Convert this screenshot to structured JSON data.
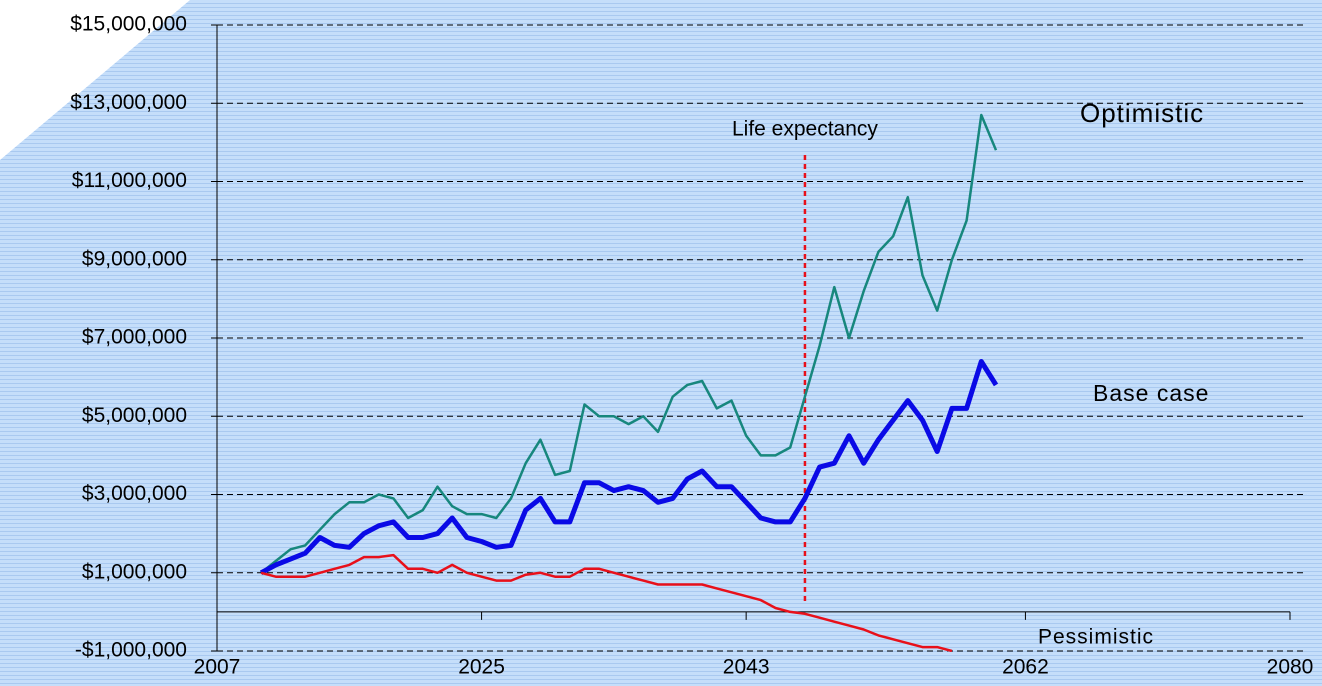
{
  "chart_data": {
    "type": "line",
    "x": [
      2010,
      2011,
      2012,
      2013,
      2014,
      2015,
      2016,
      2017,
      2018,
      2019,
      2020,
      2021,
      2022,
      2023,
      2024,
      2025,
      2026,
      2027,
      2028,
      2029,
      2030,
      2031,
      2032,
      2033,
      2034,
      2035,
      2036,
      2037,
      2038,
      2039,
      2040,
      2041,
      2042,
      2043,
      2044,
      2045,
      2046,
      2047,
      2048,
      2049,
      2050,
      2051,
      2052,
      2053,
      2054,
      2055,
      2056,
      2057,
      2058,
      2059,
      2060
    ],
    "series": [
      {
        "name": "Optimistic",
        "color": "#17877d",
        "width": 2.5,
        "values": [
          1000000,
          1300000,
          1600000,
          1700000,
          2100000,
          2500000,
          2800000,
          2800000,
          3000000,
          2900000,
          2400000,
          2600000,
          3200000,
          2700000,
          2500000,
          2500000,
          2400000,
          2900000,
          3800000,
          4400000,
          3500000,
          3600000,
          5300000,
          5000000,
          5000000,
          4800000,
          5000000,
          4600000,
          5500000,
          5800000,
          5900000,
          5200000,
          5400000,
          4500000,
          4000000,
          4000000,
          4200000,
          5500000,
          6800000,
          8300000,
          7000000,
          8200000,
          9200000,
          9600000,
          10600000,
          8600000,
          7700000,
          9000000,
          10000000,
          12700000,
          11800000
        ]
      },
      {
        "name": "Base case",
        "color": "#0a0ae6",
        "width": 5,
        "values": [
          1000000,
          1200000,
          1350000,
          1500000,
          1900000,
          1700000,
          1650000,
          2000000,
          2200000,
          2300000,
          1900000,
          1900000,
          2000000,
          2400000,
          1900000,
          1800000,
          1650000,
          1700000,
          2600000,
          2900000,
          2300000,
          2300000,
          3300000,
          3300000,
          3100000,
          3200000,
          3100000,
          2800000,
          2900000,
          3400000,
          3600000,
          3200000,
          3200000,
          2800000,
          2400000,
          2300000,
          2300000,
          2900000,
          3700000,
          3800000,
          4500000,
          3800000,
          4400000,
          4900000,
          5400000,
          4900000,
          4100000,
          5200000,
          5200000,
          6400000,
          5800000
        ]
      },
      {
        "name": "Pessimistic",
        "color": "#e8101a",
        "width": 2.5,
        "values": [
          1000000,
          900000,
          900000,
          900000,
          1000000,
          1100000,
          1200000,
          1400000,
          1400000,
          1450000,
          1100000,
          1100000,
          1000000,
          1200000,
          1000000,
          900000,
          800000,
          800000,
          950000,
          1000000,
          900000,
          900000,
          1100000,
          1100000,
          1000000,
          900000,
          800000,
          700000,
          700000,
          700000,
          700000,
          600000,
          500000,
          400000,
          300000,
          100000,
          0,
          -50000,
          -150000,
          -250000,
          -350000,
          -450000,
          -600000,
          -700000,
          -800000,
          -900000,
          -900000,
          -1000000,
          null,
          null,
          null
        ]
      }
    ],
    "annotation": {
      "text": "Life expectancy",
      "x": 2047,
      "color": "#e8101a"
    },
    "xlim": [
      2007,
      2080
    ],
    "xticks": [
      2007,
      2025,
      2043,
      2062,
      2080
    ],
    "ylim": [
      -1000000,
      15000000
    ],
    "yticks": [
      {
        "value": -1000000,
        "label": "-$1,000,000"
      },
      {
        "value": 1000000,
        "label": "$1,000,000"
      },
      {
        "value": 3000000,
        "label": "$3,000,000"
      },
      {
        "value": 5000000,
        "label": "$5,000,000"
      },
      {
        "value": 7000000,
        "label": "$7,000,000"
      },
      {
        "value": 9000000,
        "label": "$9,000,000"
      },
      {
        "value": 11000000,
        "label": "$11,000,000"
      },
      {
        "value": 13000000,
        "label": "$13,000,000"
      },
      {
        "value": 15000000,
        "label": "$15,000,000"
      }
    ],
    "grid": true
  }
}
